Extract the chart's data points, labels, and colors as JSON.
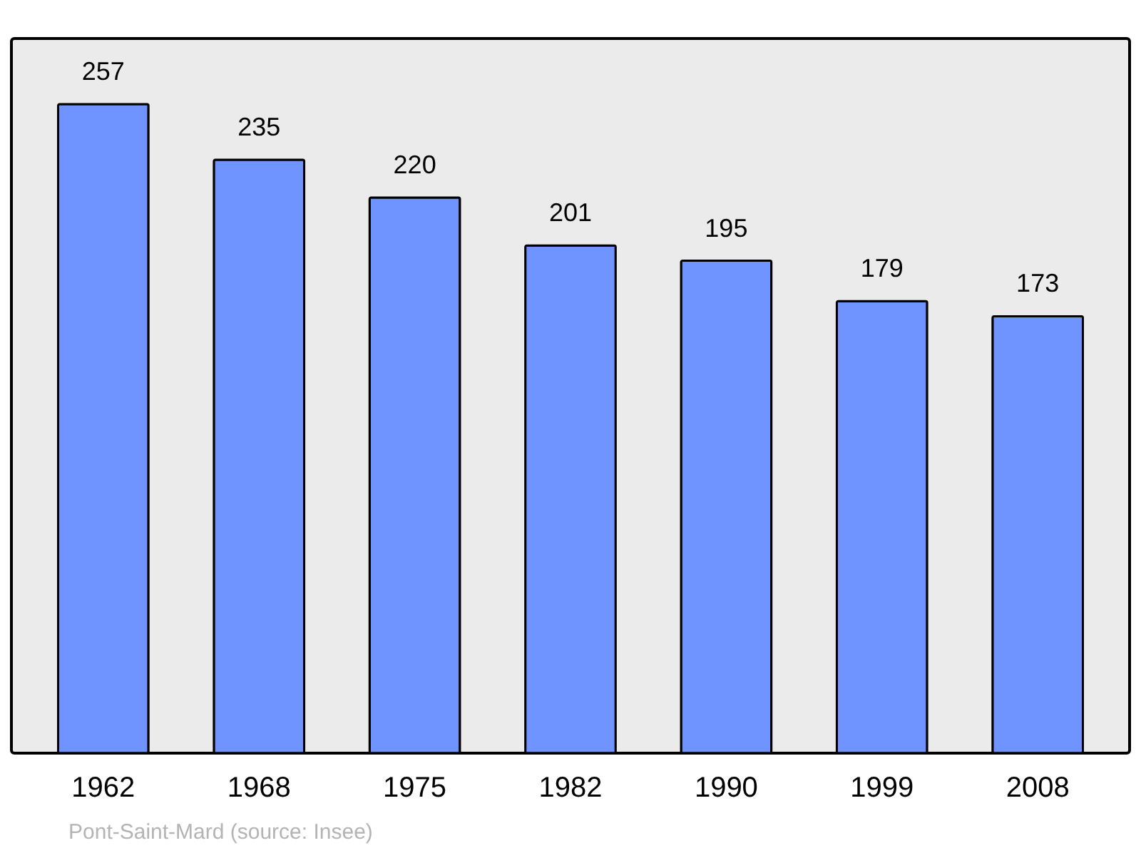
{
  "chart_data": {
    "type": "bar",
    "categories": [
      "1962",
      "1968",
      "1975",
      "1982",
      "1990",
      "1999",
      "2008"
    ],
    "values": [
      257,
      235,
      220,
      201,
      195,
      179,
      173
    ],
    "color": "#7094ff",
    "ylim": [
      0,
      283
    ],
    "data_labels": true,
    "grid": false,
    "tick_labels": "x",
    "annotations": [
      "Pont-Saint-Mard    (source: Insee)"
    ]
  }
}
